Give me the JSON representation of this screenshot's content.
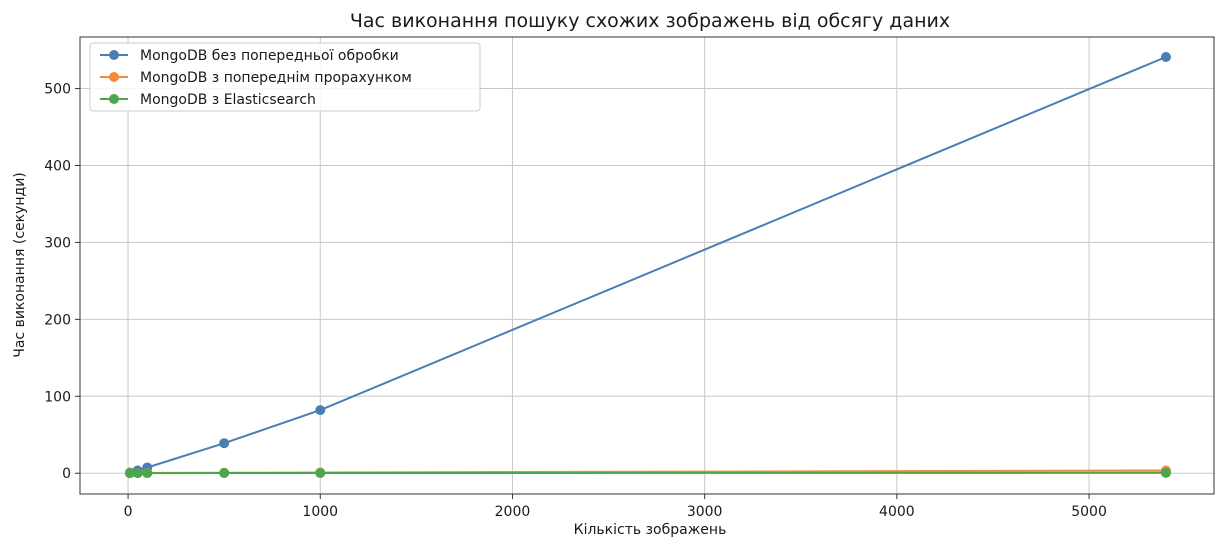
{
  "chart_data": {
    "type": "line",
    "title": "Час виконання пошуку схожих зображень від обсягу даних",
    "xlabel": "Кількість зображень",
    "ylabel": "Час виконання (секунди)",
    "xlim": [
      -250,
      5650
    ],
    "ylim": [
      -27,
      567
    ],
    "xticks": [
      0,
      1000,
      2000,
      3000,
      4000,
      5000
    ],
    "yticks": [
      0,
      100,
      200,
      300,
      400,
      500
    ],
    "grid": true,
    "legend_position": "upper-left",
    "series": [
      {
        "name": "MongoDB без попередньої обробки",
        "color": "#4a7eb5",
        "x": [
          10,
          50,
          100,
          500,
          1000,
          5400
        ],
        "y": [
          0.8,
          3.5,
          7.5,
          39,
          82,
          541
        ]
      },
      {
        "name": "MongoDB з попереднім прорахунком",
        "color": "#f28c3a",
        "x": [
          10,
          50,
          100,
          500,
          1000,
          5400
        ],
        "y": [
          0.3,
          0.3,
          0.4,
          0.6,
          0.9,
          3.5
        ]
      },
      {
        "name": "MongoDB з Elasticsearch",
        "color": "#4ca64c",
        "x": [
          10,
          50,
          100,
          500,
          1000,
          5400
        ],
        "y": [
          0.2,
          0.2,
          0.2,
          0.3,
          0.3,
          0.5
        ]
      }
    ]
  }
}
